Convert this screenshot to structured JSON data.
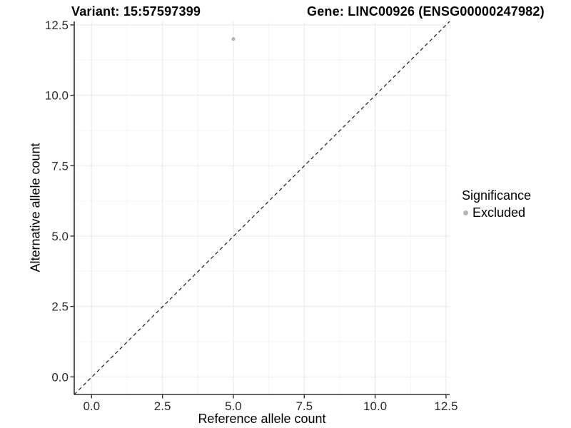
{
  "titles": {
    "variant": "Variant: 15:57597399",
    "gene": "Gene: LINC00926 (ENSG00000247982)"
  },
  "chart_data": {
    "type": "scatter",
    "title": "Variant: 15:57597399  /  Gene: LINC00926 (ENSG00000247982)",
    "xlabel": "Reference allele count",
    "ylabel": "Alternative allele count",
    "xticks": [
      0.0,
      2.5,
      5.0,
      7.5,
      10.0,
      12.5
    ],
    "yticks": [
      0.0,
      2.5,
      5.0,
      7.5,
      10.0,
      12.5
    ],
    "xlim": [
      -0.63,
      12.67
    ],
    "ylim": [
      -0.63,
      12.63
    ],
    "grid": "major+minor",
    "identity_line": true,
    "points": [
      {
        "x": 5,
        "y": 12,
        "series": "Excluded"
      }
    ],
    "legend": {
      "position": "right",
      "title": "Significance",
      "entries": [
        {
          "label": "Excluded",
          "color": "#b5b5b5"
        }
      ]
    }
  },
  "colors": {
    "background": "#ffffff",
    "point": "#b5b5b5",
    "axis": "#333333",
    "tick_label": "#2d2d2d",
    "grid_major": "#e8e8e8",
    "grid_minor": "#f4f4f4",
    "dashed_line": "#1a1a1a"
  }
}
